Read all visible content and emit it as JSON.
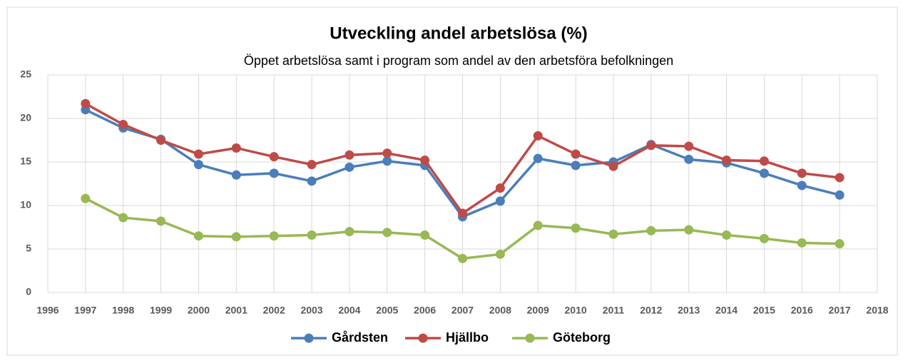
{
  "chart_data": {
    "type": "line",
    "title": "Utveckling andel arbetslösa (%)",
    "subtitle": "Öppet arbetslösa samt i program som andel av den arbetsföra befolkningen",
    "x": [
      1997,
      1998,
      1999,
      2000,
      2001,
      2002,
      2003,
      2004,
      2005,
      2006,
      2007,
      2008,
      2009,
      2010,
      2011,
      2012,
      2013,
      2014,
      2015,
      2016,
      2017
    ],
    "series": [
      {
        "name": "Gårdsten",
        "color": "#4a7ebb",
        "values": [
          21.0,
          18.9,
          17.6,
          14.7,
          13.5,
          13.7,
          12.8,
          14.4,
          15.1,
          14.6,
          8.7,
          10.5,
          15.4,
          14.6,
          15.0,
          17.0,
          15.3,
          14.9,
          13.7,
          12.3,
          11.2
        ]
      },
      {
        "name": "Hjällbo",
        "color": "#be4b48",
        "values": [
          21.7,
          19.3,
          17.5,
          15.9,
          16.6,
          15.6,
          14.7,
          15.8,
          16.0,
          15.2,
          9.1,
          12.0,
          18.0,
          15.9,
          14.5,
          16.9,
          16.8,
          15.2,
          15.1,
          13.7,
          13.2
        ]
      },
      {
        "name": "Göteborg",
        "color": "#98b954",
        "values": [
          10.8,
          8.6,
          8.2,
          6.5,
          6.4,
          6.5,
          6.6,
          7.0,
          6.9,
          6.6,
          3.9,
          4.4,
          7.7,
          7.4,
          6.7,
          7.1,
          7.2,
          6.6,
          6.2,
          5.7,
          5.6
        ]
      }
    ],
    "xlim": [
      1996,
      2018
    ],
    "xticks": [
      1996,
      1997,
      1998,
      1999,
      2000,
      2001,
      2002,
      2003,
      2004,
      2005,
      2006,
      2007,
      2008,
      2009,
      2010,
      2011,
      2012,
      2013,
      2014,
      2015,
      2016,
      2017,
      2018
    ],
    "ylim": [
      0,
      25
    ],
    "yticks": [
      0,
      5,
      10,
      15,
      20,
      25
    ],
    "grid": true,
    "legend": "bottom"
  }
}
